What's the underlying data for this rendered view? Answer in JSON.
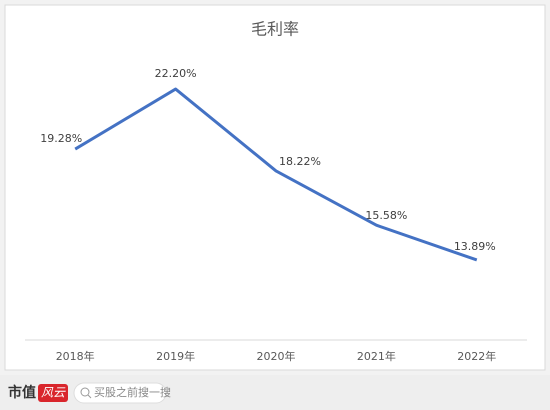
{
  "chart_data": {
    "type": "line",
    "title": "毛利率",
    "categories": [
      "2018年",
      "2019年",
      "2020年",
      "2021年",
      "2022年"
    ],
    "values": [
      19.28,
      22.2,
      18.22,
      15.58,
      13.89
    ],
    "value_labels": [
      "19.28%",
      "22.20%",
      "18.22%",
      "15.58%",
      "13.89%"
    ],
    "color": "#4472c4",
    "ylim": [
      10,
      24
    ]
  },
  "footer": {
    "brand": "市值",
    "brand_mark": "风云",
    "search_placeholder": "买股之前搜一搜"
  }
}
